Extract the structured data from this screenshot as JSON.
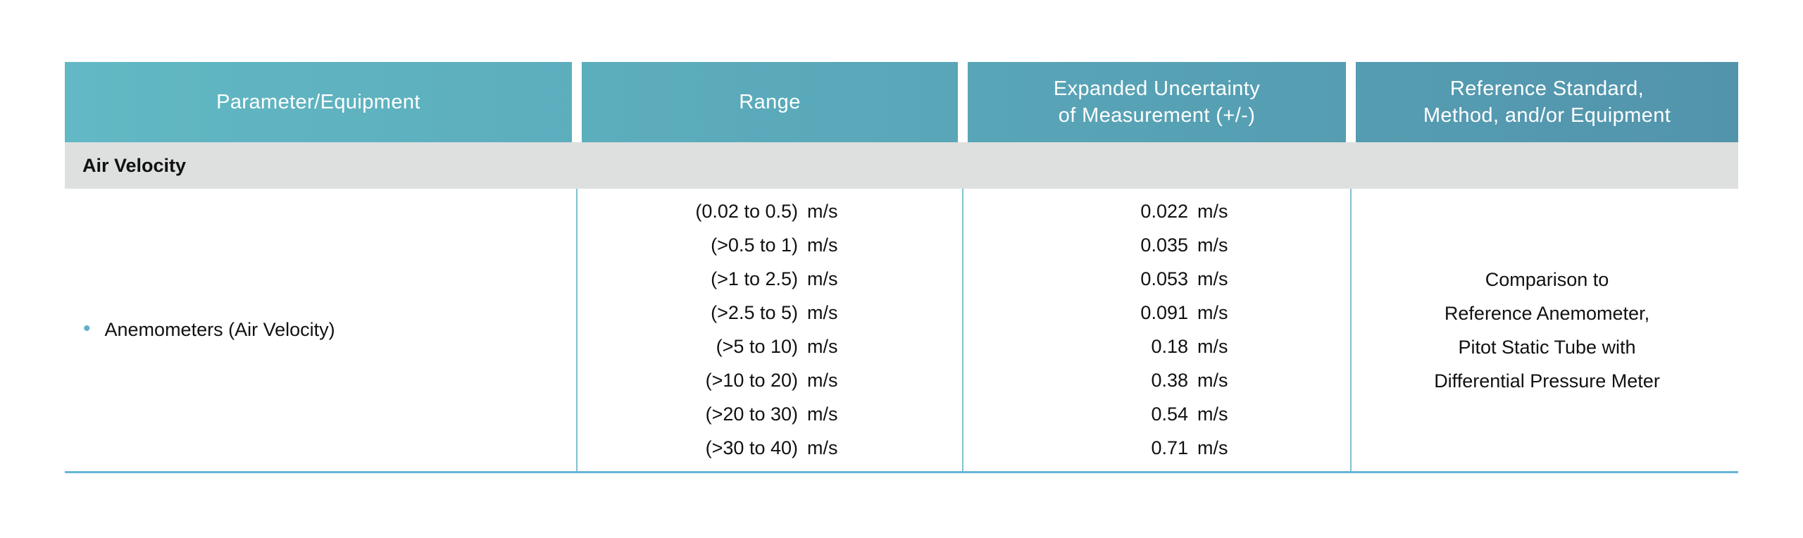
{
  "colors": {
    "header_gradient_start": "#62B8C4",
    "header_gradient_end": "#5294AC",
    "header_text": "#FFFFFF",
    "section_row_bg": "#DEDFDF",
    "body_text": "#111111",
    "column_divider": "#7FC2CE",
    "bottom_border": "#65B6D8",
    "bullet": "#5FAFCD"
  },
  "table": {
    "columns": [
      {
        "label": "Parameter/Equipment"
      },
      {
        "label": "Range"
      },
      {
        "label": "Expanded Uncertainty\nof Measurement (+/-)"
      },
      {
        "label": "Reference Standard,\nMethod, and/or Equipment"
      }
    ],
    "section": {
      "title": "Air Velocity"
    },
    "row": {
      "bullet": "•",
      "parameter": "Anemometers (Air Velocity)",
      "entries": [
        {
          "range": "(0.02 to 0.5)",
          "uncertainty": "0.022",
          "unit": "m/s"
        },
        {
          "range": "(>0.5 to 1)",
          "uncertainty": "0.035",
          "unit": "m/s"
        },
        {
          "range": "(>1 to 2.5)",
          "uncertainty": "0.053",
          "unit": "m/s"
        },
        {
          "range": "(>2.5 to 5)",
          "uncertainty": "0.091",
          "unit": "m/s"
        },
        {
          "range": "(>5 to 10)",
          "uncertainty": "0.18",
          "unit": "m/s"
        },
        {
          "range": "(>10 to 20)",
          "uncertainty": "0.38",
          "unit": "m/s"
        },
        {
          "range": "(>20 to 30)",
          "uncertainty": "0.54",
          "unit": "m/s"
        },
        {
          "range": "(>30 to 40)",
          "uncertainty": "0.71",
          "unit": "m/s"
        }
      ],
      "reference": "Comparison to\nReference Anemometer,\nPitot Static Tube with\nDifferential Pressure Meter"
    }
  }
}
